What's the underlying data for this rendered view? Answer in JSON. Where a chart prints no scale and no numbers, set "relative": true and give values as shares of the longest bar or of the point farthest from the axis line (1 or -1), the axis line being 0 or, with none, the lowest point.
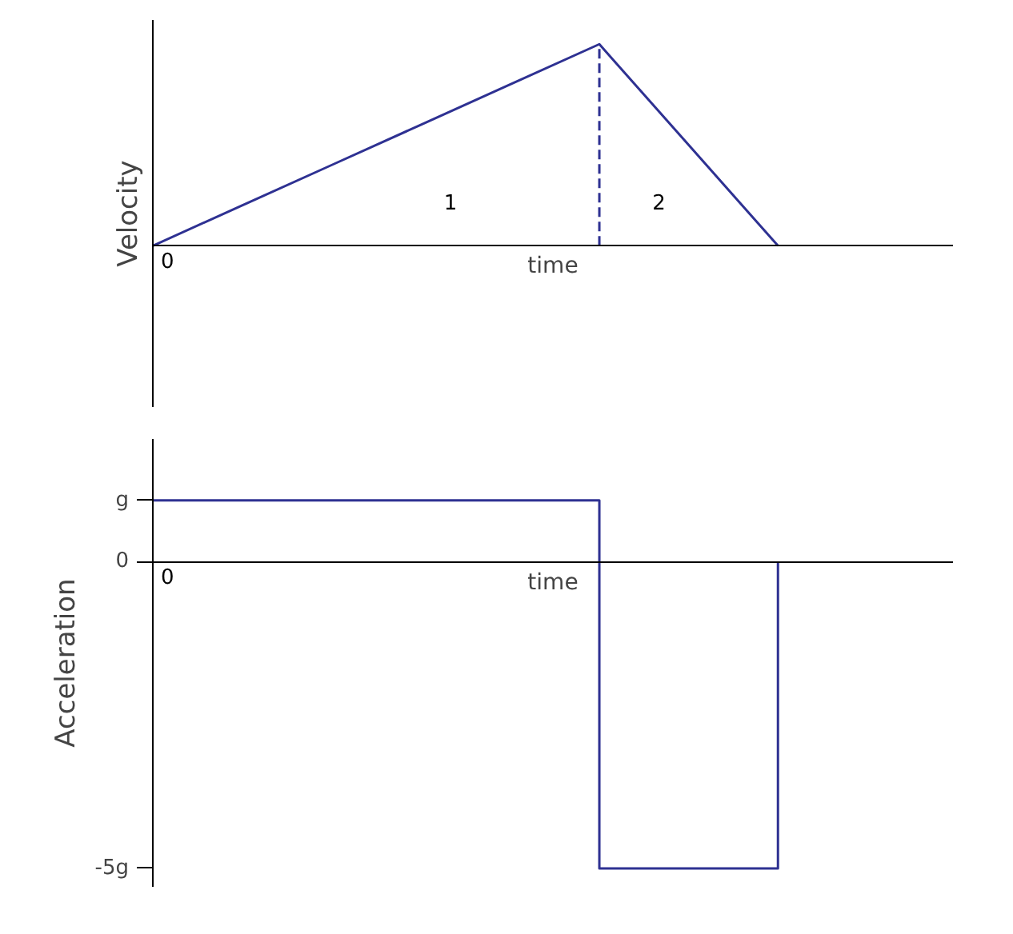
{
  "chart_data": [
    {
      "type": "line",
      "relative": true,
      "ylabel": "Velocity",
      "xlabel": "time",
      "categories": [
        null,
        null,
        null,
        null,
        null,
        null,
        null,
        null
      ],
      "series": [
        {
          "color": "#2e3192",
          "values": [
            0,
            0.2,
            0.4,
            0.6,
            0.8,
            1,
            0.5,
            0
          ]
        }
      ],
      "ref_lines": [
        {
          "axis": "x",
          "line_style": "dashed",
          "color": "#2e3192"
        }
      ],
      "annotations": [
        "1",
        "2",
        "0",
        "0"
      ]
    },
    {
      "type": "step",
      "ylabel": "Acceleration",
      "xlabel": "time",
      "categories": [
        null,
        null,
        null,
        null,
        null,
        null,
        null,
        null
      ],
      "ylim": [
        -5.3,
        2
      ],
      "yticks": [
        {
          "value": 1,
          "label": "g"
        },
        0,
        {
          "value": -5,
          "label": "-5g"
        }
      ],
      "series": [
        {
          "color": "#2e3192",
          "values": [
            1,
            1,
            1,
            1,
            1,
            -5,
            -5,
            0
          ]
        }
      ],
      "annotations": [
        "0"
      ]
    }
  ]
}
